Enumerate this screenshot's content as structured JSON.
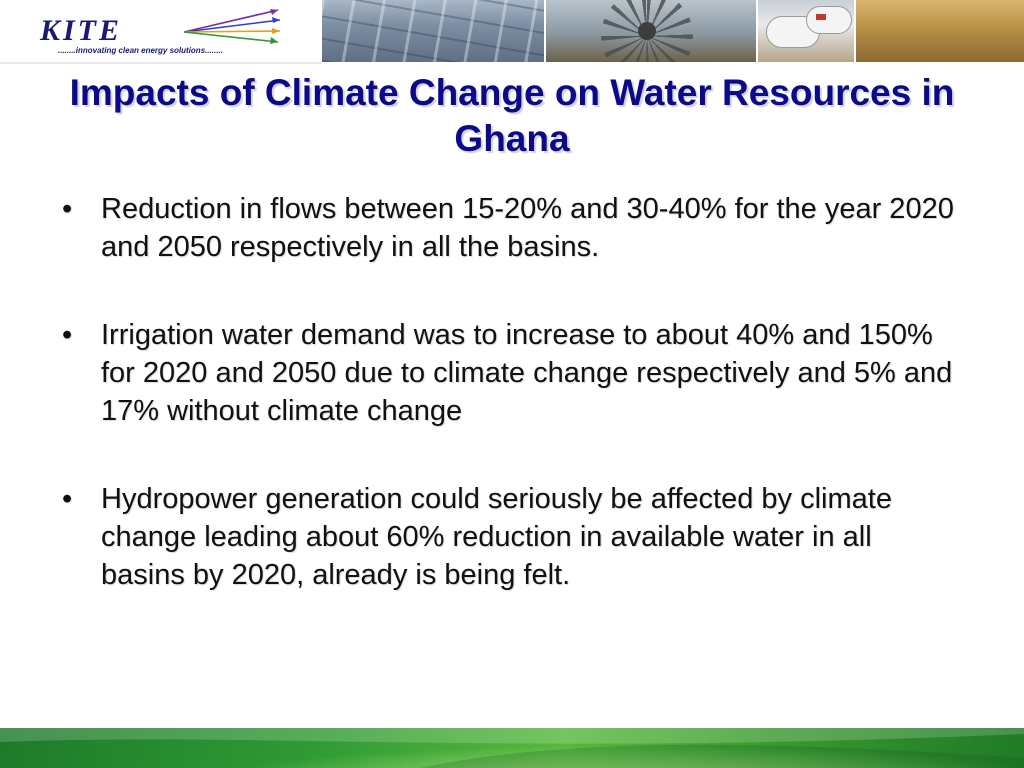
{
  "header": {
    "logo_word": "KITE",
    "logo_tagline": "........innovating clean energy solutions........"
  },
  "title": "Impacts of Climate Change on Water Resources in Ghana",
  "bullets": [
    {
      "marker": "•",
      "text": "Reduction in flows between 15-20% and 30-40% for the year 2020 and 2050 respectively in all the basins."
    },
    {
      "marker": "•",
      "text": "Irrigation water demand was to increase to about 40% and 150%  for 2020 and 2050 due to climate change respectively and 5% and 17% without climate change"
    },
    {
      "marker": "•",
      "text": "Hydropower generation could seriously be affected by climate change leading about 60% reduction in available water in all basins by 2020, already is being felt."
    }
  ],
  "colors": {
    "title": "#0a0a8a",
    "body_text": "#111111",
    "logo": "#1a1a6e",
    "footer_green": "#2f9a34"
  },
  "icons": [
    "kite-logo-arrows-icon",
    "solar-panel-photo",
    "wind-turbine-photo",
    "gas-tanks-photo",
    "field-photo"
  ]
}
